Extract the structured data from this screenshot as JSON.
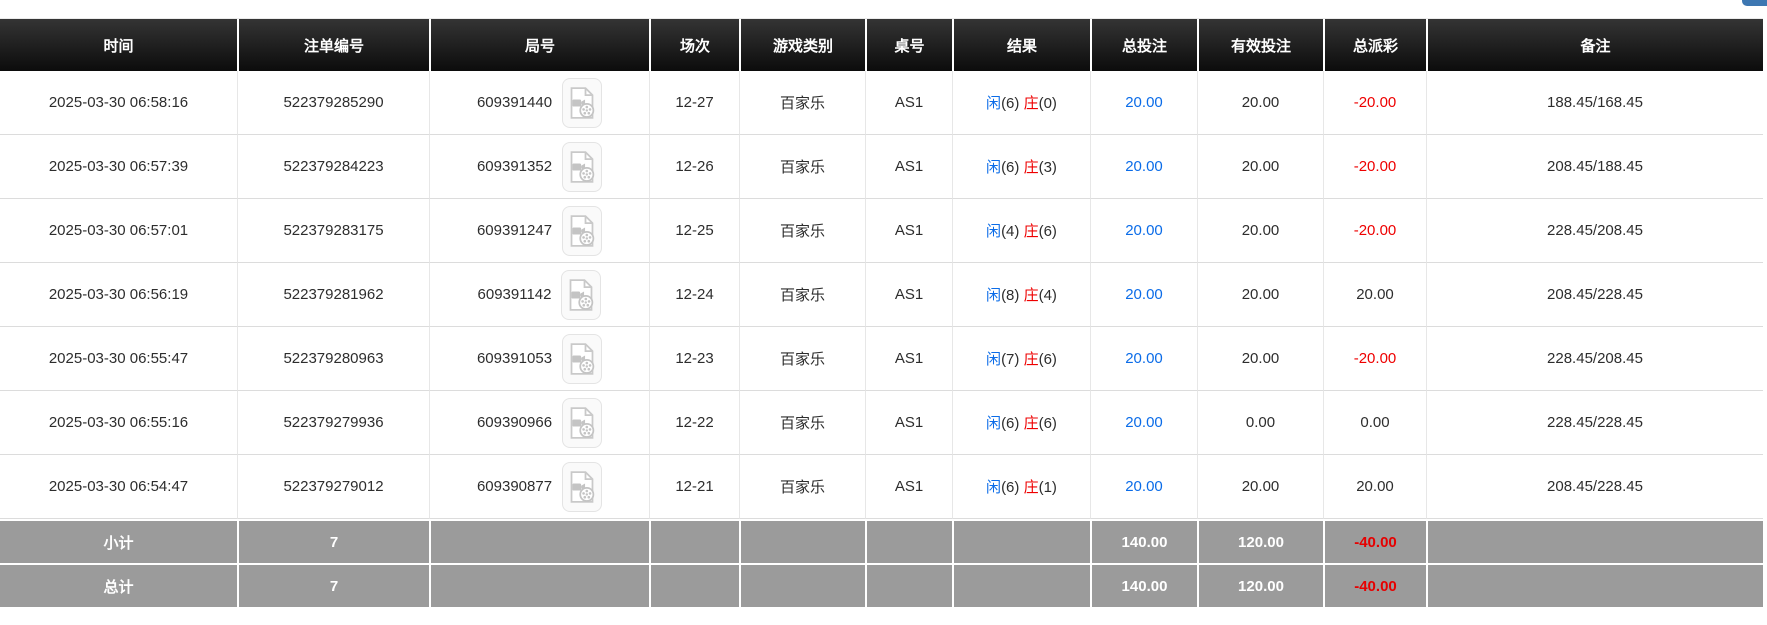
{
  "corner_tab": {
    "color": "#3d77b2"
  },
  "colors": {
    "header_bg_top": "#343434",
    "header_bg_bottom": "#0c0c0c",
    "footer_bg": "#9b9b9b",
    "accent_blue": "#0b6ce8",
    "negative_red": "#ee0000",
    "body_text": "#2d2d2d",
    "grid_line": "#dcdcdc"
  },
  "table": {
    "columns": [
      {
        "key": "time",
        "label": "时间"
      },
      {
        "key": "bet_id",
        "label": "注单编号"
      },
      {
        "key": "round_id",
        "label": "局号"
      },
      {
        "key": "session",
        "label": "场次"
      },
      {
        "key": "game_type",
        "label": "游戏类别"
      },
      {
        "key": "table_id",
        "label": "桌号"
      },
      {
        "key": "result",
        "label": "结果"
      },
      {
        "key": "total_bet",
        "label": "总投注"
      },
      {
        "key": "valid_bet",
        "label": "有效投注"
      },
      {
        "key": "total_payout",
        "label": "总派彩"
      },
      {
        "key": "remark",
        "label": "备注"
      }
    ],
    "video_icon": "video-file-icon",
    "rows": [
      {
        "time": "2025-03-30 06:58:16",
        "bet_id": "522379285290",
        "round_id": "609391440",
        "session": "12-27",
        "game_type": "百家乐",
        "table_id": "AS1",
        "result": {
          "player_label": "闲",
          "player_value": "(6)",
          "banker_label": "庄",
          "banker_value": "(0)"
        },
        "total_bet": "20.00",
        "valid_bet": "20.00",
        "total_payout": "-20.00",
        "remark": "188.45/168.45"
      },
      {
        "time": "2025-03-30 06:57:39",
        "bet_id": "522379284223",
        "round_id": "609391352",
        "session": "12-26",
        "game_type": "百家乐",
        "table_id": "AS1",
        "result": {
          "player_label": "闲",
          "player_value": "(6)",
          "banker_label": "庄",
          "banker_value": "(3)"
        },
        "total_bet": "20.00",
        "valid_bet": "20.00",
        "total_payout": "-20.00",
        "remark": "208.45/188.45"
      },
      {
        "time": "2025-03-30 06:57:01",
        "bet_id": "522379283175",
        "round_id": "609391247",
        "session": "12-25",
        "game_type": "百家乐",
        "table_id": "AS1",
        "result": {
          "player_label": "闲",
          "player_value": "(4)",
          "banker_label": "庄",
          "banker_value": "(6)"
        },
        "total_bet": "20.00",
        "valid_bet": "20.00",
        "total_payout": "-20.00",
        "remark": "228.45/208.45"
      },
      {
        "time": "2025-03-30 06:56:19",
        "bet_id": "522379281962",
        "round_id": "609391142",
        "session": "12-24",
        "game_type": "百家乐",
        "table_id": "AS1",
        "result": {
          "player_label": "闲",
          "player_value": "(8)",
          "banker_label": "庄",
          "banker_value": "(4)"
        },
        "total_bet": "20.00",
        "valid_bet": "20.00",
        "total_payout": "20.00",
        "remark": "208.45/228.45"
      },
      {
        "time": "2025-03-30 06:55:47",
        "bet_id": "522379280963",
        "round_id": "609391053",
        "session": "12-23",
        "game_type": "百家乐",
        "table_id": "AS1",
        "result": {
          "player_label": "闲",
          "player_value": "(7)",
          "banker_label": "庄",
          "banker_value": "(6)"
        },
        "total_bet": "20.00",
        "valid_bet": "20.00",
        "total_payout": "-20.00",
        "remark": "228.45/208.45"
      },
      {
        "time": "2025-03-30 06:55:16",
        "bet_id": "522379279936",
        "round_id": "609390966",
        "session": "12-22",
        "game_type": "百家乐",
        "table_id": "AS1",
        "result": {
          "player_label": "闲",
          "player_value": "(6)",
          "banker_label": "庄",
          "banker_value": "(6)"
        },
        "total_bet": "20.00",
        "valid_bet": "0.00",
        "total_payout": "0.00",
        "remark": "228.45/228.45"
      },
      {
        "time": "2025-03-30 06:54:47",
        "bet_id": "522379279012",
        "round_id": "609390877",
        "session": "12-21",
        "game_type": "百家乐",
        "table_id": "AS1",
        "result": {
          "player_label": "闲",
          "player_value": "(6)",
          "banker_label": "庄",
          "banker_value": "(1)"
        },
        "total_bet": "20.00",
        "valid_bet": "20.00",
        "total_payout": "20.00",
        "remark": "208.45/228.45"
      }
    ],
    "footer": [
      {
        "label": "小计",
        "count": "7",
        "total_bet": "140.00",
        "valid_bet": "120.00",
        "total_payout": "-40.00"
      },
      {
        "label": "总计",
        "count": "7",
        "total_bet": "140.00",
        "valid_bet": "120.00",
        "total_payout": "-40.00"
      }
    ]
  }
}
